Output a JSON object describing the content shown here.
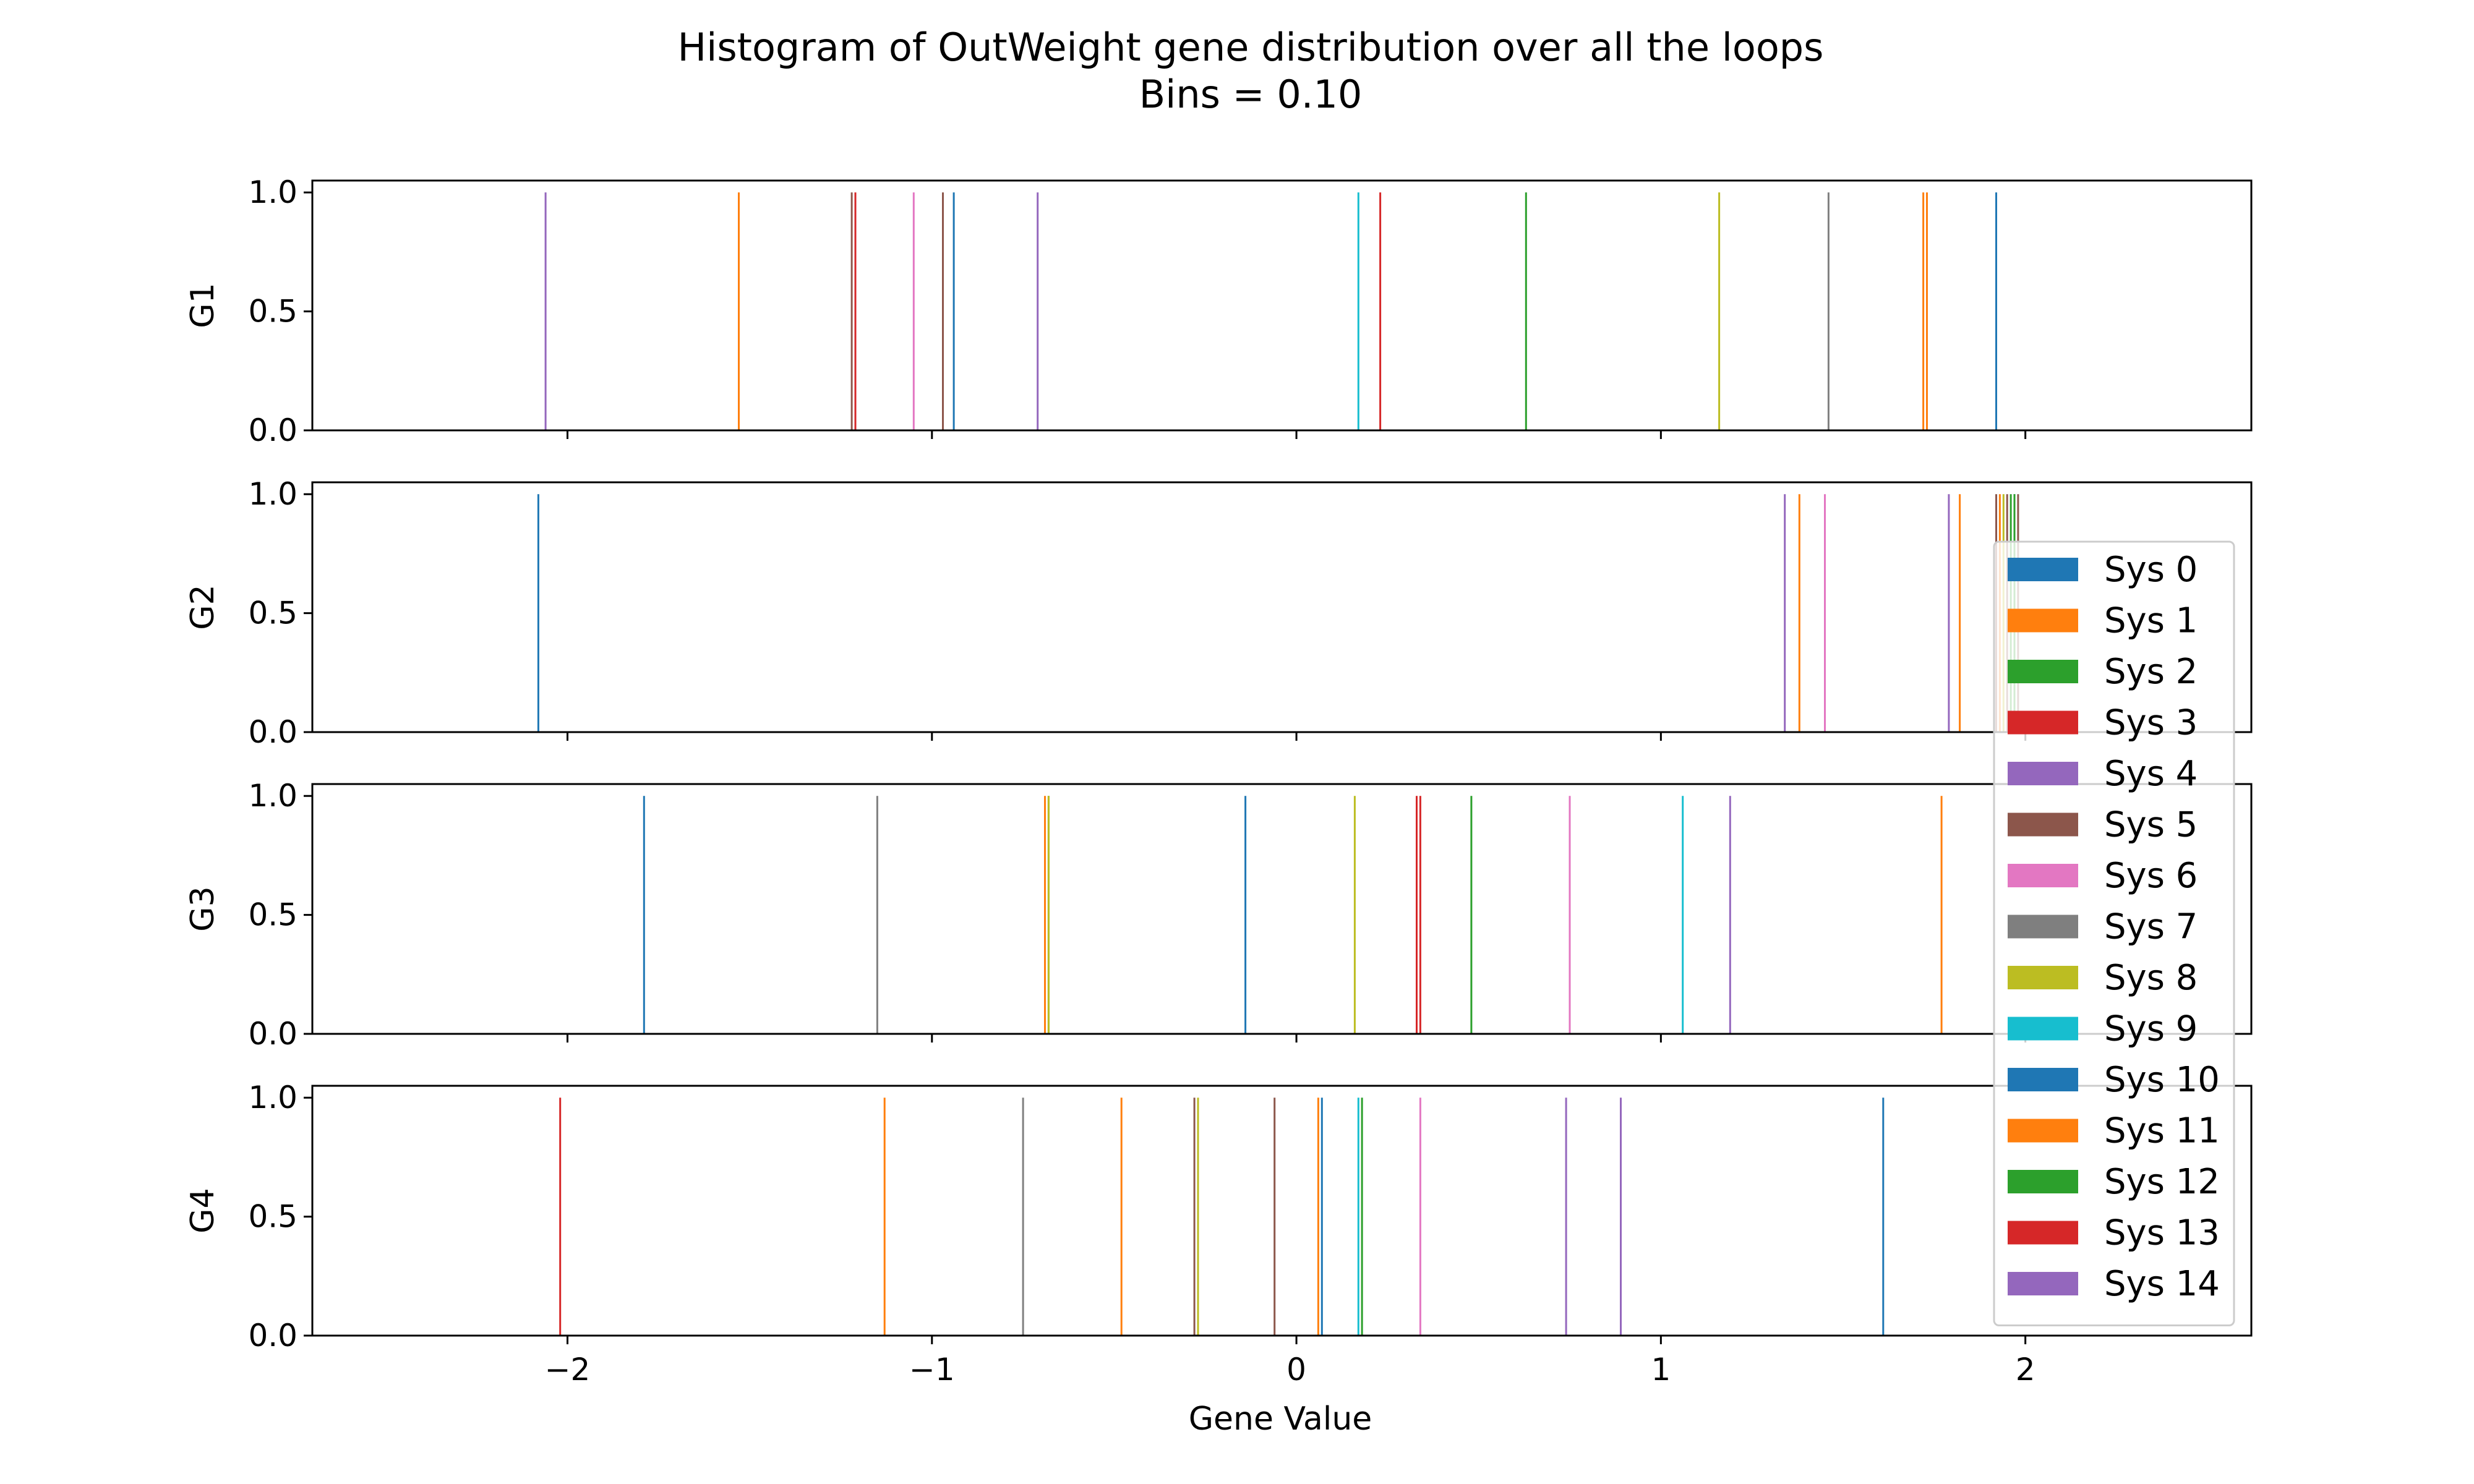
{
  "chart_data": {
    "type": "histogram",
    "title": "Histogram of OutWeight gene distribution over all the loops",
    "subtitle": "Bins = 0.10",
    "xlabel": "Gene Value",
    "xlim": [
      -2.7,
      2.62
    ],
    "x_ticks": [
      -2,
      -1,
      0,
      1,
      2
    ],
    "x_tick_labels": [
      "−2",
      "−1",
      "0",
      "1",
      "2"
    ],
    "ylim": [
      0,
      1.05
    ],
    "y_ticks": [
      0,
      0.5,
      1
    ],
    "y_tick_labels": [
      "0.0",
      "0.5",
      "1.0"
    ],
    "legend_position": "right, overlapping G2 to G4",
    "series": [
      {
        "name": "Sys 0",
        "color": "#1f77b4"
      },
      {
        "name": "Sys 1",
        "color": "#ff7f0e"
      },
      {
        "name": "Sys 2",
        "color": "#2ca02c"
      },
      {
        "name": "Sys 3",
        "color": "#d62728"
      },
      {
        "name": "Sys 4",
        "color": "#9467bd"
      },
      {
        "name": "Sys 5",
        "color": "#8c564b"
      },
      {
        "name": "Sys 6",
        "color": "#e377c2"
      },
      {
        "name": "Sys 7",
        "color": "#7f7f7f"
      },
      {
        "name": "Sys 8",
        "color": "#bcbd22"
      },
      {
        "name": "Sys 9",
        "color": "#17becf"
      },
      {
        "name": "Sys 10",
        "color": "#1f77b4"
      },
      {
        "name": "Sys 11",
        "color": "#ff7f0e"
      },
      {
        "name": "Sys 12",
        "color": "#2ca02c"
      },
      {
        "name": "Sys 13",
        "color": "#d62728"
      },
      {
        "name": "Sys 14",
        "color": "#9467bd"
      }
    ],
    "subplots": [
      {
        "ylabel": "G1",
        "values": [
          {
            "series": "Sys 10",
            "x": 1.92,
            "count": 1
          },
          {
            "series": "Sys 11",
            "x": 1.72,
            "count": 1
          },
          {
            "series": "Sys 1",
            "x": 1.73,
            "count": 1
          },
          {
            "series": "Sys 7",
            "x": 1.46,
            "count": 1
          },
          {
            "series": "Sys 8",
            "x": 1.16,
            "count": 1
          },
          {
            "series": "Sys 2",
            "x": 0.63,
            "count": 1
          },
          {
            "series": "Sys 3",
            "x": 0.23,
            "count": 1
          },
          {
            "series": "Sys 9",
            "x": 0.17,
            "count": 1
          },
          {
            "series": "Sys 14",
            "x": -0.71,
            "count": 1
          },
          {
            "series": "Sys 0",
            "x": -0.94,
            "count": 1
          },
          {
            "series": "Sys 5",
            "x": -0.97,
            "count": 1
          },
          {
            "series": "Sys 6",
            "x": -1.05,
            "count": 1
          },
          {
            "series": "Sys 5",
            "x": -1.22,
            "count": 1
          },
          {
            "series": "Sys 3",
            "x": -1.21,
            "count": 1
          },
          {
            "series": "Sys 1",
            "x": -1.53,
            "count": 1
          },
          {
            "series": "Sys 4",
            "x": -2.06,
            "count": 1
          }
        ]
      },
      {
        "ylabel": "G2",
        "values": [
          {
            "series": "Sys 0",
            "x": -2.08,
            "count": 1
          },
          {
            "series": "Sys 4",
            "x": 1.34,
            "count": 1
          },
          {
            "series": "Sys 1",
            "x": 1.38,
            "count": 1
          },
          {
            "series": "Sys 6",
            "x": 1.45,
            "count": 1
          },
          {
            "series": "Sys 4",
            "x": 1.79,
            "count": 1
          },
          {
            "series": "Sys 1",
            "x": 1.82,
            "count": 1
          },
          {
            "series": "Sys 5",
            "x": 1.92,
            "count": 1
          },
          {
            "series": "Sys 11",
            "x": 1.93,
            "count": 1
          },
          {
            "series": "Sys 8",
            "x": 1.94,
            "count": 1
          },
          {
            "series": "Sys 5",
            "x": 1.95,
            "count": 1
          },
          {
            "series": "Sys 2",
            "x": 1.96,
            "count": 1
          },
          {
            "series": "Sys 10",
            "x": 1.97,
            "count": 1
          },
          {
            "series": "Sys 12",
            "x": 1.97,
            "count": 1
          },
          {
            "series": "Sys 5",
            "x": 1.98,
            "count": 1
          }
        ]
      },
      {
        "ylabel": "G3",
        "values": [
          {
            "series": "Sys 0",
            "x": -1.79,
            "count": 1
          },
          {
            "series": "Sys 7",
            "x": -1.15,
            "count": 1
          },
          {
            "series": "Sys 1",
            "x": -0.69,
            "count": 1
          },
          {
            "series": "Sys 12",
            "x": -0.68,
            "count": 1
          },
          {
            "series": "Sys 8",
            "x": -0.68,
            "count": 1
          },
          {
            "series": "Sys 10",
            "x": -0.14,
            "count": 1
          },
          {
            "series": "Sys 8",
            "x": 0.16,
            "count": 1
          },
          {
            "series": "Sys 3",
            "x": 0.33,
            "count": 1
          },
          {
            "series": "Sys 13",
            "x": 0.34,
            "count": 1
          },
          {
            "series": "Sys 2",
            "x": 0.48,
            "count": 1
          },
          {
            "series": "Sys 6",
            "x": 0.75,
            "count": 1
          },
          {
            "series": "Sys 9",
            "x": 1.06,
            "count": 1
          },
          {
            "series": "Sys 4",
            "x": 1.19,
            "count": 1
          },
          {
            "series": "Sys 1",
            "x": 1.77,
            "count": 1
          }
        ]
      },
      {
        "ylabel": "G4",
        "values": [
          {
            "series": "Sys 3",
            "x": -2.02,
            "count": 1
          },
          {
            "series": "Sys 1",
            "x": -1.13,
            "count": 1
          },
          {
            "series": "Sys 7",
            "x": -0.75,
            "count": 1
          },
          {
            "series": "Sys 11",
            "x": -0.48,
            "count": 1
          },
          {
            "series": "Sys 5",
            "x": -0.28,
            "count": 1
          },
          {
            "series": "Sys 8",
            "x": -0.27,
            "count": 1
          },
          {
            "series": "Sys 5",
            "x": -0.06,
            "count": 1
          },
          {
            "series": "Sys 1",
            "x": 0.06,
            "count": 1
          },
          {
            "series": "Sys 0",
            "x": 0.07,
            "count": 1
          },
          {
            "series": "Sys 9",
            "x": 0.17,
            "count": 1
          },
          {
            "series": "Sys 2",
            "x": 0.18,
            "count": 1
          },
          {
            "series": "Sys 6",
            "x": 0.34,
            "count": 1
          },
          {
            "series": "Sys 14",
            "x": 0.74,
            "count": 1
          },
          {
            "series": "Sys 4",
            "x": 0.89,
            "count": 1
          },
          {
            "series": "Sys 10",
            "x": 1.61,
            "count": 1
          }
        ]
      }
    ]
  }
}
